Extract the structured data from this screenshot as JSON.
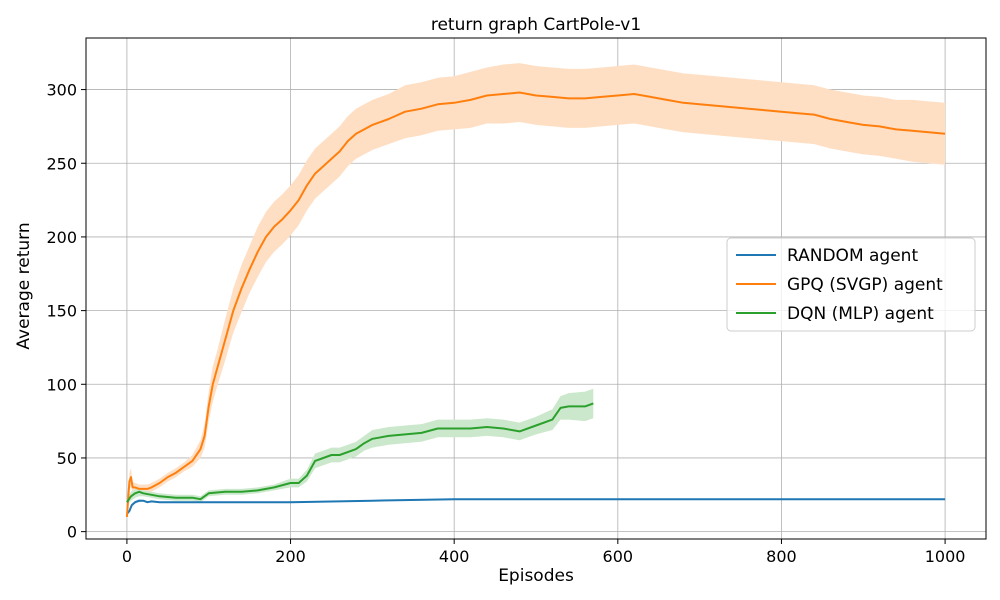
{
  "chart_data": {
    "type": "line",
    "title": "return graph CartPole-v1",
    "xlabel": "Episodes",
    "ylabel": "Average return",
    "xlim": [
      -50,
      1050
    ],
    "ylim": [
      -5,
      335
    ],
    "xticks": [
      0,
      200,
      400,
      600,
      800,
      1000
    ],
    "yticks": [
      0,
      50,
      100,
      150,
      200,
      250,
      300
    ],
    "grid": true,
    "legend_position": "center-right",
    "series": [
      {
        "name": "RANDOM agent",
        "color": "#1f77b4",
        "x": [
          0,
          3,
          6,
          10,
          15,
          20,
          25,
          30,
          40,
          60,
          100,
          200,
          300,
          400,
          500,
          600,
          700,
          800,
          900,
          1000
        ],
        "y": [
          12,
          14,
          18,
          20,
          21,
          21,
          20,
          20.5,
          20,
          20,
          20,
          20,
          21,
          22,
          22,
          22,
          22,
          22,
          22,
          22
        ],
        "band": [
          0,
          1,
          1,
          1,
          1,
          0.5,
          0.5,
          0.5,
          0.5,
          0.5,
          0.5,
          0.5,
          0.5,
          0.5,
          0.5,
          0.5,
          0.5,
          0.5,
          0.5,
          0.5
        ]
      },
      {
        "name": "GPQ (SVGP) agent",
        "color": "#ff7f0e",
        "band_color": "#ffdfc4",
        "x": [
          0,
          3,
          5,
          7,
          10,
          15,
          20,
          25,
          30,
          40,
          50,
          60,
          70,
          80,
          90,
          95,
          100,
          105,
          110,
          120,
          130,
          140,
          150,
          160,
          170,
          180,
          190,
          200,
          210,
          220,
          230,
          240,
          250,
          260,
          270,
          280,
          290,
          300,
          320,
          340,
          360,
          380,
          400,
          420,
          440,
          460,
          480,
          500,
          520,
          540,
          560,
          580,
          600,
          620,
          640,
          660,
          680,
          700,
          720,
          740,
          760,
          780,
          800,
          820,
          840,
          860,
          880,
          900,
          920,
          940,
          960,
          980,
          1000
        ],
        "y": [
          10,
          34,
          37,
          30,
          30,
          29,
          29,
          29,
          30,
          33,
          37,
          40,
          44,
          48,
          56,
          65,
          85,
          100,
          110,
          130,
          150,
          165,
          178,
          190,
          200,
          207,
          212,
          218,
          225,
          235,
          243,
          248,
          253,
          258,
          265,
          270,
          273,
          276,
          280,
          285,
          287,
          290,
          291,
          293,
          296,
          297,
          298,
          296,
          295,
          294,
          294,
          295,
          296,
          297,
          295,
          293,
          291,
          290,
          289,
          288,
          287,
          286,
          285,
          284,
          283,
          280,
          278,
          276,
          275,
          273,
          272,
          271,
          270
        ],
        "band": [
          2,
          6,
          6,
          4,
          3,
          3,
          3,
          3,
          3,
          3,
          3,
          3,
          3,
          4,
          6,
          8,
          10,
          12,
          12,
          14,
          15,
          16,
          16,
          17,
          17,
          17,
          17,
          17,
          17,
          17,
          17,
          17,
          17,
          17,
          17,
          17,
          17,
          17,
          17,
          18,
          18,
          18,
          18,
          19,
          19,
          20,
          20,
          20,
          20,
          20,
          20,
          20,
          20,
          20,
          20,
          20,
          20,
          20,
          20,
          20,
          20,
          20,
          20,
          20,
          20,
          20,
          20,
          20,
          20,
          20,
          21,
          21,
          21
        ]
      },
      {
        "name": "DQN (MLP) agent",
        "color": "#2ca02c",
        "band_color": "#cce8cc",
        "x": [
          0,
          5,
          10,
          15,
          20,
          30,
          40,
          60,
          80,
          90,
          100,
          120,
          140,
          160,
          180,
          200,
          210,
          220,
          230,
          240,
          250,
          260,
          270,
          280,
          290,
          300,
          320,
          340,
          360,
          380,
          400,
          420,
          440,
          460,
          480,
          500,
          520,
          530,
          540,
          560,
          570
        ],
        "y": [
          20,
          24,
          26,
          27,
          26,
          25,
          24,
          23,
          23,
          22,
          26,
          27,
          27,
          28,
          30,
          33,
          33,
          38,
          48,
          50,
          52,
          52,
          54,
          56,
          60,
          63,
          65,
          66,
          67,
          70,
          70,
          70,
          71,
          70,
          68,
          72,
          76,
          84,
          85,
          85,
          87
        ],
        "band": [
          2,
          3,
          3,
          3,
          2,
          2,
          2,
          2,
          2,
          2,
          2,
          2,
          2,
          2,
          2,
          3,
          3,
          4,
          5,
          5,
          5,
          5,
          5,
          5,
          5,
          6,
          6,
          6,
          6,
          6,
          6,
          6,
          6,
          6,
          6,
          6,
          7,
          8,
          9,
          10,
          10
        ]
      }
    ]
  }
}
